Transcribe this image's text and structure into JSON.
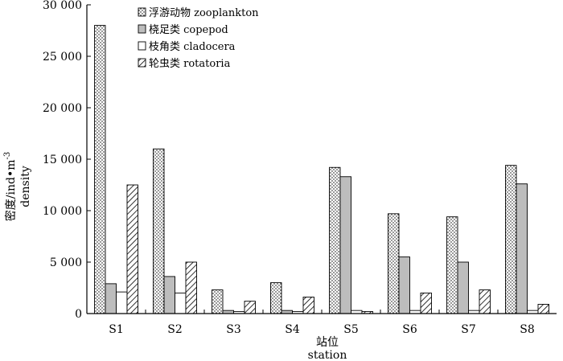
{
  "chart_data": {
    "type": "bar",
    "categories": [
      "S1",
      "S2",
      "S3",
      "S4",
      "S5",
      "S6",
      "S7",
      "S8"
    ],
    "series": [
      {
        "name": "浮游动物 zooplankton",
        "pattern": "dots",
        "values": [
          28000,
          16000,
          2300,
          3000,
          14200,
          9700,
          9400,
          14400
        ]
      },
      {
        "name": "桡足类 copepod",
        "pattern": "gray",
        "values": [
          2900,
          3600,
          300,
          300,
          13300,
          5500,
          5000,
          12600
        ]
      },
      {
        "name": "枝角类 cladocera",
        "pattern": "white",
        "values": [
          2100,
          2000,
          200,
          200,
          300,
          300,
          300,
          300
        ]
      },
      {
        "name": "轮虫类 rotatoria",
        "pattern": "hatch",
        "values": [
          12500,
          5000,
          1200,
          1600,
          200,
          2000,
          2300,
          900
        ]
      }
    ],
    "ylim": [
      0,
      30000
    ],
    "yticks": [
      0,
      5000,
      10000,
      15000,
      20000,
      25000,
      30000
    ],
    "ytick_labels": [
      "0",
      "5 000",
      "10 000",
      "15 000",
      "20 000",
      "25 000",
      "30 000"
    ],
    "ylabel": "密度/ind•m",
    "ylabel_sup": "-3",
    "ylabel_en": "density",
    "xlabel": "站位",
    "xlabel_en": "station",
    "legend_position": "top-left",
    "grid": false,
    "colors": {
      "gray": "#bdbdbd",
      "stroke": "#000000",
      "background": "#ffffff"
    }
  }
}
